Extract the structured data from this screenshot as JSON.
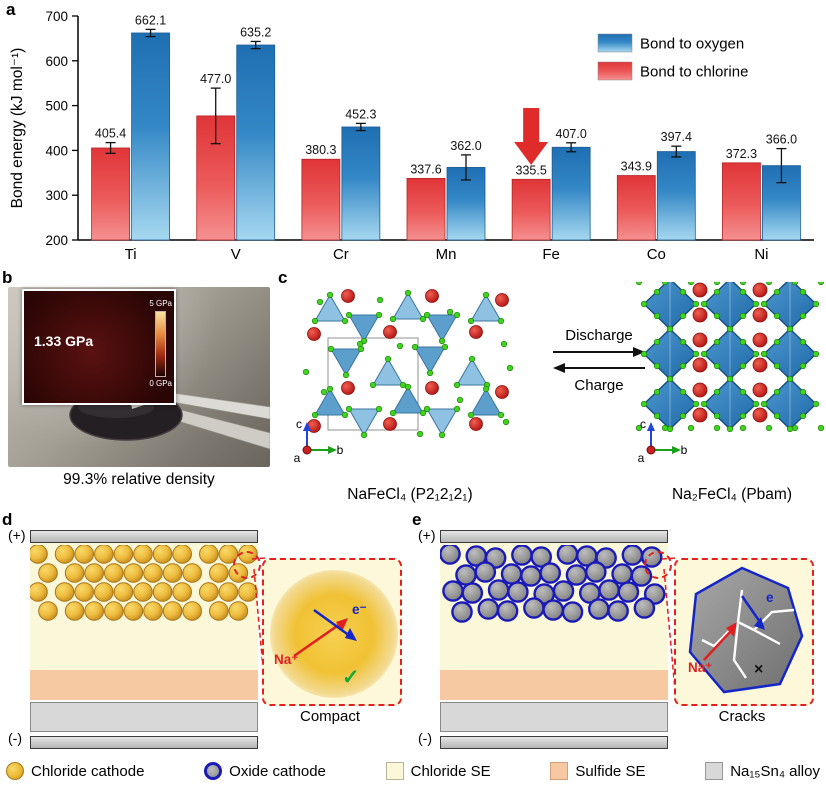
{
  "panels": {
    "a": {
      "label": "a"
    },
    "b": {
      "label": "b",
      "inset_value": "1.33 GPa",
      "scale_top": "5 GPa",
      "scale_bottom": "0 GPa",
      "caption": "99.3% relative density"
    },
    "c": {
      "label": "c",
      "discharge_label": "Discharge",
      "charge_label": "Charge",
      "left_formula": "NaFeCl₄ (P2₁2₁2₁)",
      "right_formula": "Na₂FeCl₄ (Pbam)",
      "axis_a": "a",
      "axis_b": "b",
      "axis_c": "c"
    },
    "d": {
      "label": "d",
      "positive": "(+)",
      "negative": "(-)",
      "na_ion": "Na⁺",
      "electron": "e⁻",
      "check": "✓",
      "caption": "Compact"
    },
    "e": {
      "label": "e",
      "positive": "(+)",
      "negative": "(-)",
      "na_ion": "Na⁺",
      "electron": "e",
      "cross": "×",
      "caption": "Cracks"
    }
  },
  "chart_data": {
    "type": "bar",
    "categories": [
      "Ti",
      "V",
      "Cr",
      "Mn",
      "Fe",
      "Co",
      "Ni"
    ],
    "series": [
      {
        "name": "Bond to chlorine",
        "color": "red",
        "values": [
          405.4,
          477.0,
          380.3,
          337.6,
          335.5,
          343.9,
          372.3
        ],
        "errors": [
          12,
          62,
          0,
          0,
          0,
          0,
          0
        ]
      },
      {
        "name": "Bond to oxygen",
        "color": "blue",
        "values": [
          662.1,
          635.2,
          452.3,
          362.0,
          407.0,
          397.4,
          366.0
        ],
        "errors": [
          8,
          8,
          8,
          28,
          10,
          12,
          38
        ]
      }
    ],
    "ylabel": "Bond energy (kJ mol⁻¹)",
    "ylim": [
      200,
      700
    ],
    "yticks": [
      200,
      300,
      400,
      500,
      600,
      700
    ],
    "legend": [
      {
        "label": "Bond to oxygen",
        "color": "blue"
      },
      {
        "label": "Bond to chlorine",
        "color": "red"
      }
    ],
    "legend_position": "top-right",
    "annotation": {
      "type": "down-arrow",
      "color": "#e02b2b",
      "category": "Fe",
      "series": "Bond to chlorine"
    }
  },
  "bottom_legend": {
    "items": [
      {
        "label": "Chloride cathode",
        "swatch": "chloride-cathode"
      },
      {
        "label": "Oxide cathode",
        "swatch": "oxide-cathode"
      },
      {
        "label": "Chloride SE",
        "swatch": "chloride-se"
      },
      {
        "label": "Sulfide SE",
        "swatch": "sulfide-se"
      },
      {
        "label": "Na₁₅Sn₄ alloy",
        "swatch": "alloy"
      }
    ]
  },
  "colors": {
    "bond_oxygen_top": "#1f6fb3",
    "bond_oxygen_bottom": "#a6d8f0",
    "bond_chlorine_top": "#e03538",
    "bond_chlorine_bottom": "#f59090",
    "chloride_cathode": "#eebc3f",
    "oxide_cathode": "#8b8b8b",
    "oxide_ring": "#1a1ab8",
    "chloride_se": "#fbf8da",
    "sulfide_se": "#f6c9a2",
    "alloy": "#d8d8d8",
    "highlight_red": "#e02020",
    "check_green": "#17a838"
  }
}
